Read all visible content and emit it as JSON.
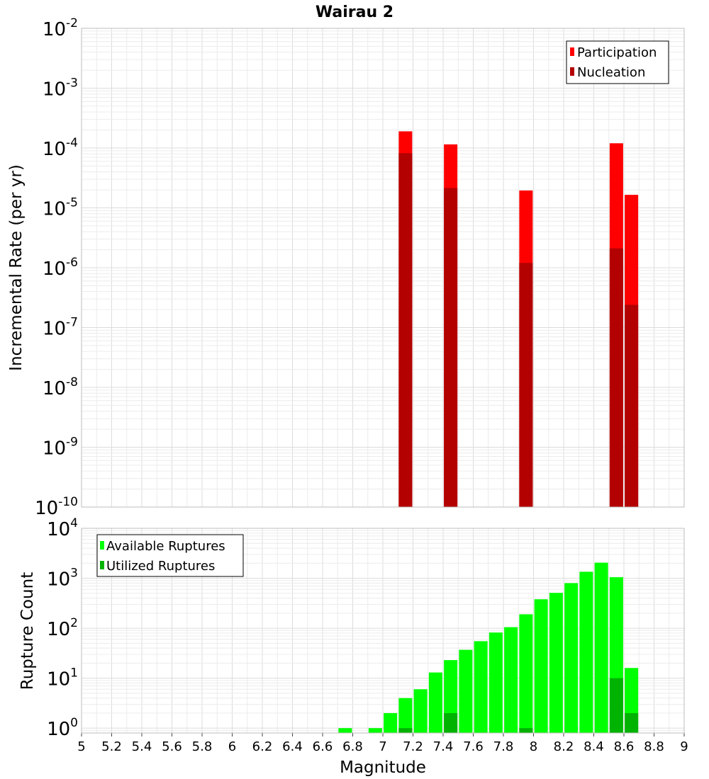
{
  "chart_data": [
    {
      "type": "bar",
      "title": "Wairau 2",
      "ylabel": "Incremental Rate (per yr)",
      "xlabel": "",
      "y_scale": "log",
      "ylim": [
        1e-10,
        0.01
      ],
      "xlim": [
        5,
        9
      ],
      "grid": true,
      "legend_position": "top-right",
      "series": [
        {
          "name": "Participation",
          "color": "#ff0000",
          "x": [
            7.15,
            7.45,
            7.95,
            8.55,
            8.65
          ],
          "values": [
            0.00019,
            0.000115,
            1.95e-05,
            0.00012,
            1.65e-05
          ]
        },
        {
          "name": "Nucleation",
          "color": "#b30000",
          "x": [
            7.15,
            7.45,
            7.95,
            8.55,
            8.65
          ],
          "values": [
            8.2e-05,
            2.15e-05,
            1.2e-06,
            2.1e-06,
            2.4e-07
          ]
        }
      ]
    },
    {
      "type": "bar",
      "title": "",
      "ylabel": "Rupture Count",
      "xlabel": "Magnitude",
      "y_scale": "log",
      "ylim": [
        0.8,
        10000
      ],
      "xlim": [
        5,
        9
      ],
      "grid": true,
      "legend_position": "top-left",
      "x_ticks": [
        "5",
        "5.2",
        "5.4",
        "5.6",
        "5.8",
        "6",
        "6.2",
        "6.4",
        "6.6",
        "6.8",
        "7",
        "7.2",
        "7.4",
        "7.6",
        "7.8",
        "8",
        "8.2",
        "8.4",
        "8.6",
        "8.8",
        "9"
      ],
      "series": [
        {
          "name": "Available Ruptures",
          "color": "#00ff00",
          "x": [
            6.75,
            6.95,
            7.05,
            7.15,
            7.25,
            7.35,
            7.45,
            7.55,
            7.65,
            7.75,
            7.85,
            7.95,
            8.05,
            8.15,
            8.25,
            8.35,
            8.45,
            8.55,
            8.65
          ],
          "values": [
            1,
            1,
            2,
            4,
            6,
            13,
            23,
            37,
            55,
            82,
            105,
            190,
            380,
            510,
            800,
            1350,
            2050,
            1050,
            16
          ]
        },
        {
          "name": "Utilized Ruptures",
          "color": "#00b300",
          "x": [
            7.15,
            7.45,
            7.95,
            8.55,
            8.65
          ],
          "values": [
            1,
            2,
            1,
            10,
            2
          ]
        }
      ]
    }
  ]
}
